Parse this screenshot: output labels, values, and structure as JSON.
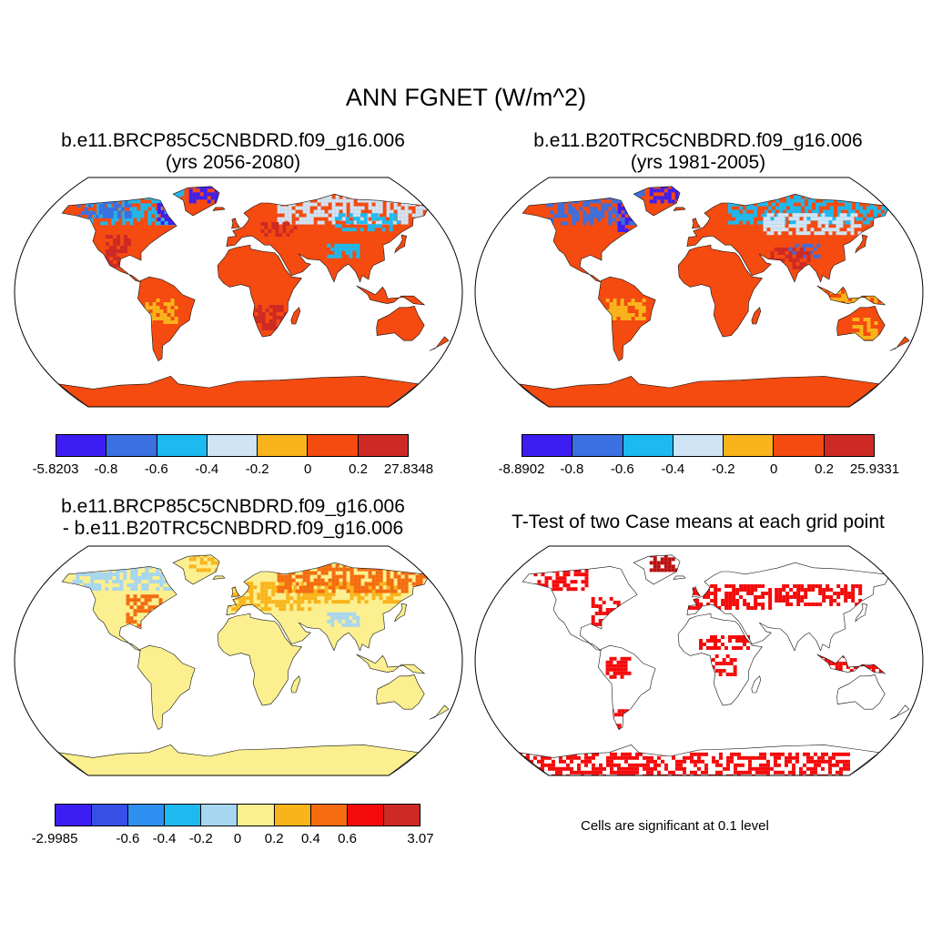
{
  "title": "ANN FGNET (W/m^2)",
  "panels": [
    {
      "title_line1": "b.e11.BRCP85C5CNBDRD.f09_g16.006",
      "title_line2": "(yrs 2056-2080)",
      "colorbar": {
        "colors": [
          "#3d1ef2",
          "#3a70e2",
          "#1cbaf0",
          "#cfe5f6",
          "#f9b41c",
          "#f54a10",
          "#ce2a25"
        ],
        "labels": [
          "-5.8203",
          "-0.8",
          "-0.6",
          "-0.4",
          "-0.2",
          "0",
          "0.2",
          "27.8348"
        ]
      }
    },
    {
      "title_line1": "b.e11.B20TRC5CNBDRD.f09_g16.006",
      "title_line2": "(yrs 1981-2005)",
      "colorbar": {
        "colors": [
          "#3d1ef2",
          "#3a70e2",
          "#1cbaf0",
          "#cfe5f6",
          "#f9b41c",
          "#f54a10",
          "#ce2a25"
        ],
        "labels": [
          "-8.8902",
          "-0.8",
          "-0.6",
          "-0.4",
          "-0.2",
          "0",
          "0.2",
          "25.9331"
        ]
      }
    },
    {
      "title_line1": "b.e11.BRCP85C5CNBDRD.f09_g16.006",
      "title_line2": "- b.e11.B20TRC5CNBDRD.f09_g16.006",
      "colorbar": {
        "colors": [
          "#3d1ef2",
          "#3650e6",
          "#2e8ff0",
          "#1cbaf0",
          "#a7d6ef",
          "#fbef8f",
          "#f9b41c",
          "#f46b10",
          "#f50a0a",
          "#ce2a25"
        ],
        "labels": [
          "-2.9985",
          "",
          "-0.6",
          "-0.4",
          "-0.2",
          "0",
          "0.2",
          "0.4",
          "0.6",
          "",
          "3.07"
        ]
      }
    },
    {
      "title_line1": "T-Test of two Case means at each grid point",
      "note": "Cells are significant at 0.1 level"
    }
  ]
}
